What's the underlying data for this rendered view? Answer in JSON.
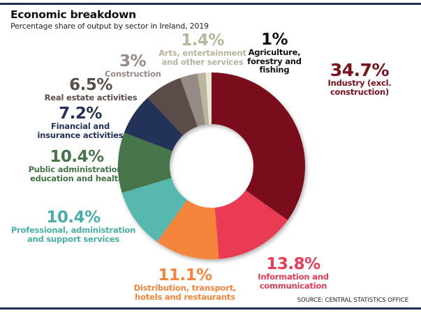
{
  "chart_data": {
    "type": "pie",
    "variant": "donut",
    "title": "Economic breakdown",
    "subtitle": "Percentage share of output by sector in Ireland, 2019",
    "source": "SOURCE: CENTRAL STATISTICS OFFICE",
    "slices": [
      {
        "name": "Industry (excl. construction)",
        "pct_label": "34.7%",
        "value": 34.7,
        "color": "#7a111b",
        "desc_lines": [
          "Industry (excl.",
          "construction)"
        ]
      },
      {
        "name": "Information and communication",
        "pct_label": "13.8%",
        "value": 13.8,
        "color": "#ea3a55",
        "desc_lines": [
          "Information and",
          "communication"
        ]
      },
      {
        "name": "Distribution, transport, hotels and restaurants",
        "pct_label": "11.1%",
        "value": 11.1,
        "color": "#f5843c",
        "desc_lines": [
          "Distribution, transport,",
          "hotels and restaurants"
        ]
      },
      {
        "name": "Professional, administration and support services",
        "pct_label": "10.4%",
        "value": 10.4,
        "color": "#56b8ae",
        "desc_lines": [
          "Professional, administration",
          "and support services"
        ]
      },
      {
        "name": "Public administration, education and health",
        "pct_label": "10.4%",
        "value": 10.4,
        "color": "#457549",
        "desc_lines": [
          "Public administration,",
          "education and health"
        ]
      },
      {
        "name": "Financial and insurance activities",
        "pct_label": "7.2%",
        "value": 7.2,
        "color": "#243158",
        "desc_lines": [
          "Financial and",
          "insurance activities"
        ]
      },
      {
        "name": "Real estate activities",
        "pct_label": "6.5%",
        "value": 6.5,
        "color": "#5a4e4a",
        "desc_lines": [
          "Real estate activities"
        ]
      },
      {
        "name": "Construction",
        "pct_label": "3%",
        "value": 3,
        "color": "#958a86",
        "desc_lines": [
          "Construction"
        ]
      },
      {
        "name": "Arts, entertainment and other services",
        "pct_label": "1.4%",
        "value": 1.4,
        "color": "#b9b49c",
        "desc_lines": [
          "Arts, entertainment",
          "and other services"
        ]
      },
      {
        "name": "Agriculture, forestry and fishing",
        "pct_label": "1%",
        "value": 1,
        "color": "#ebe6d6",
        "desc_lines": [
          "Agriculture,",
          "forestry and",
          "fishing"
        ]
      }
    ],
    "label_colors": [
      "#7a111b",
      "#ea3a55",
      "#f5843c",
      "#48b0a6",
      "#457549",
      "#243158",
      "#5a4e4a",
      "#958a86",
      "#b9b49c",
      "#111111"
    ]
  },
  "accent_bar_color": "#1f2d4e"
}
